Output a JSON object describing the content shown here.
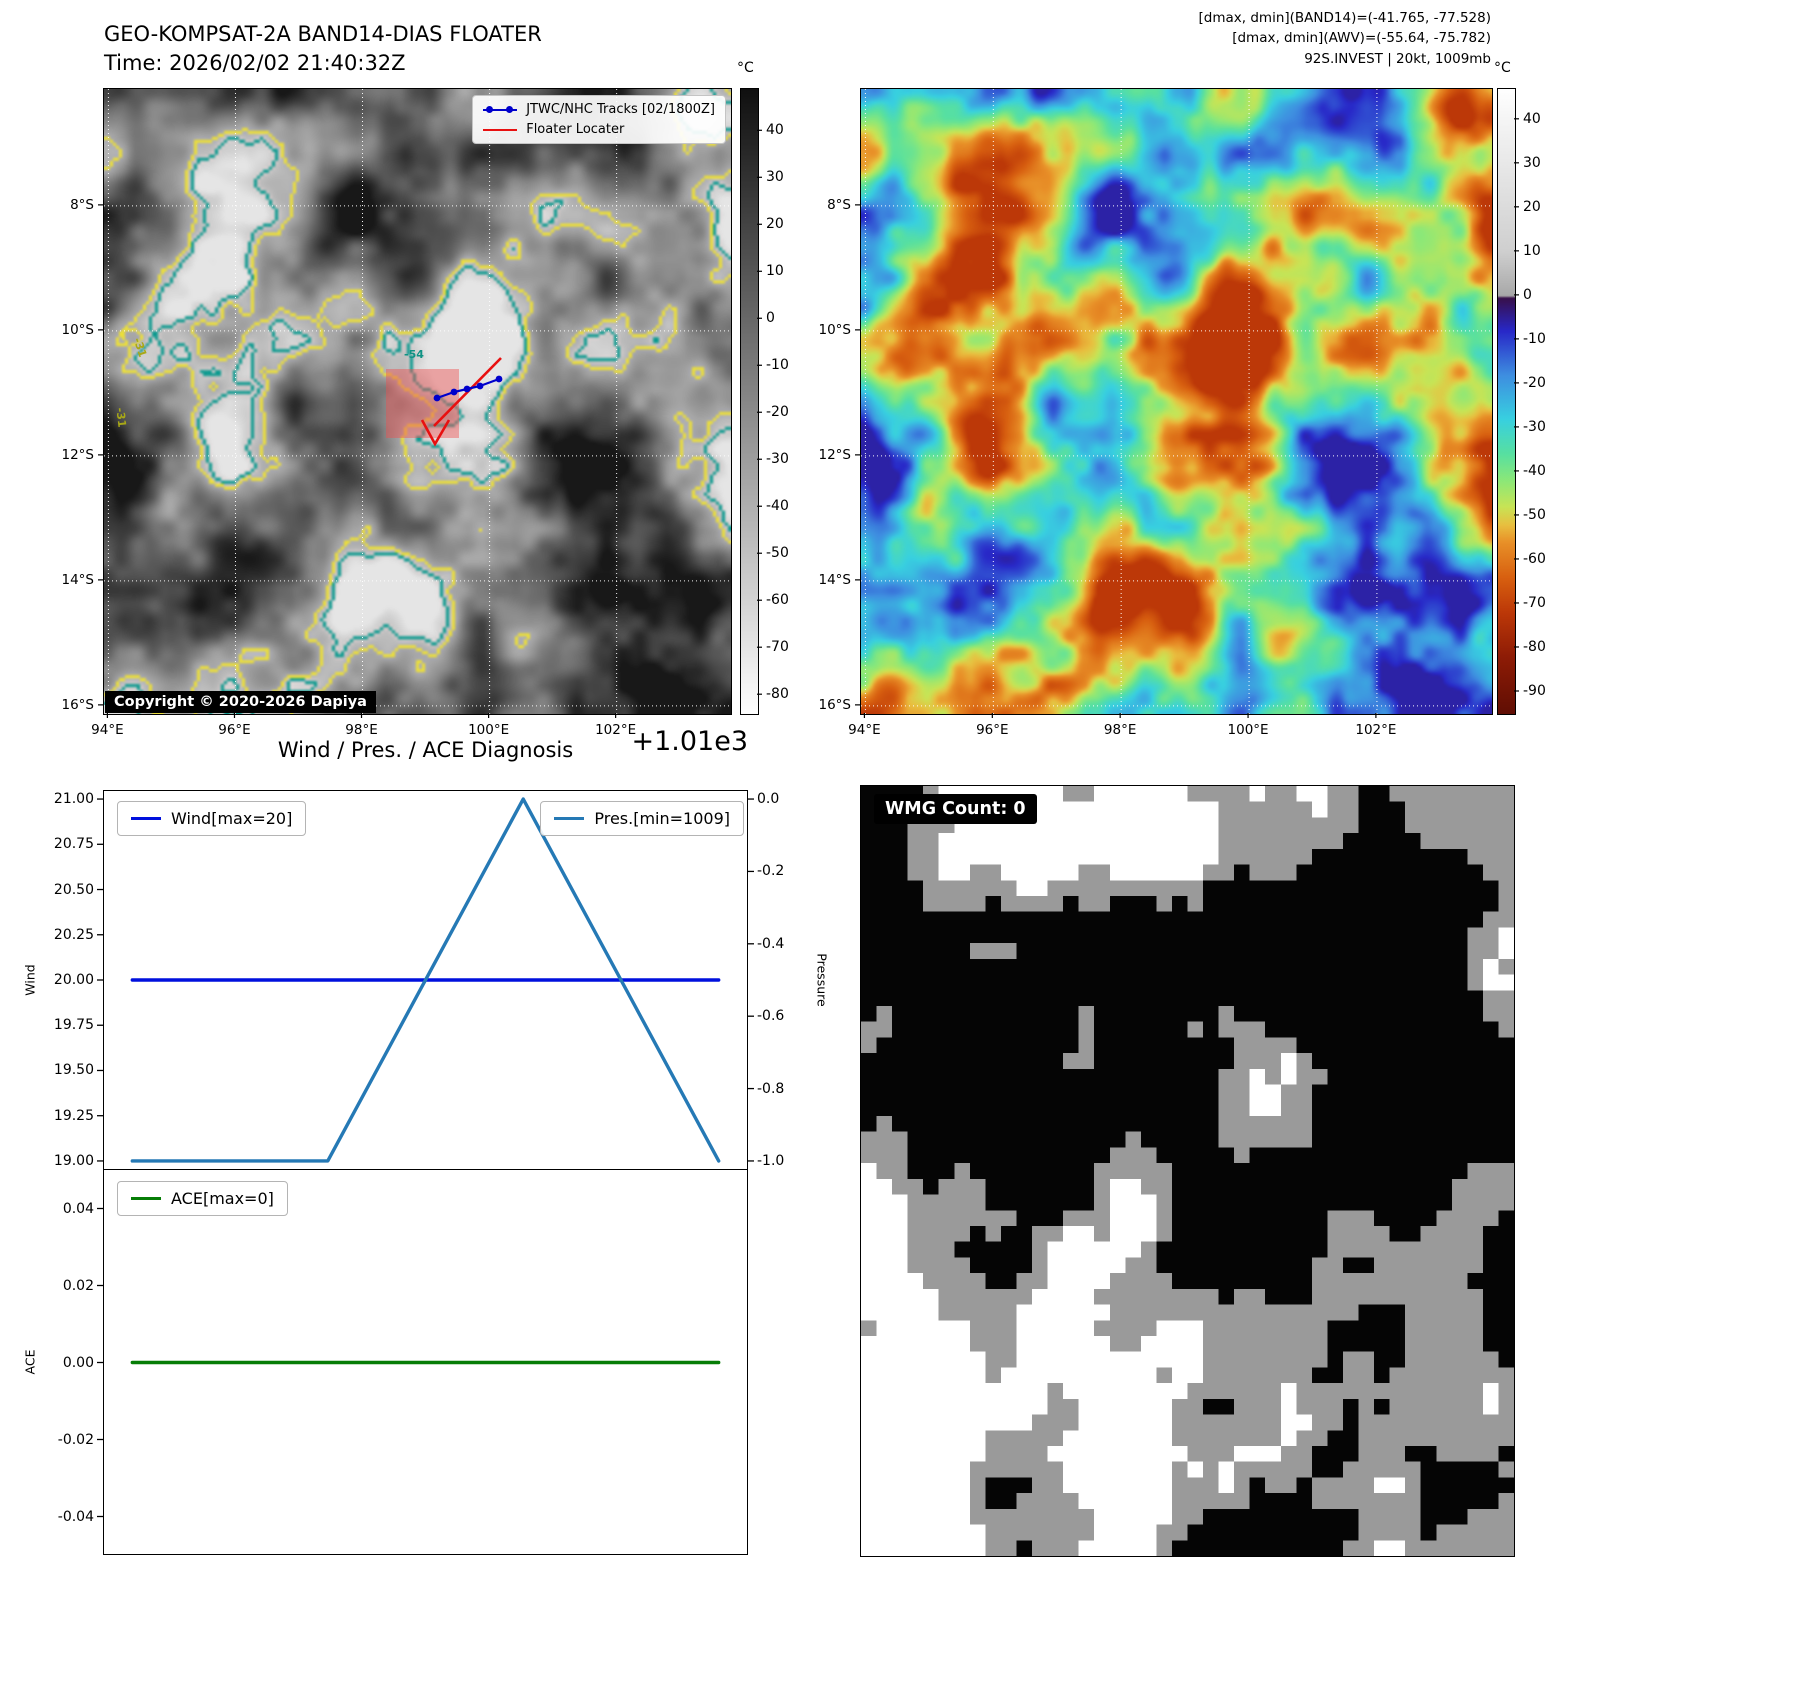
{
  "band14_panel": {
    "title": "GEO-KOMPSAT-2A BAND14-DIAS FLOATER",
    "time_line": "Time: 2026/02/02 21:40:32Z",
    "legend": {
      "tracks_label": "JTWC/NHC Tracks [02/1800Z]",
      "tracks_color": "#0000cc",
      "floater_label": "Floater Locater",
      "floater_color": "#e81010"
    },
    "copyright": "Copyright © 2020-2026 Dapiya",
    "contour_labels": [
      {
        "text": "-31",
        "color": "#a8a816"
      },
      {
        "text": "-54",
        "color": "#109284"
      },
      {
        "text": "-31",
        "color": "#a8a816"
      }
    ],
    "floater_box_color": "#ee5050",
    "colorbar": {
      "unit": "°C",
      "ticks": [
        40,
        30,
        20,
        10,
        0,
        -10,
        -20,
        -30,
        -40,
        -50,
        -60,
        -70,
        -80
      ],
      "stops": [
        {
          "t": 49,
          "c": "#101010"
        },
        {
          "t": -84,
          "c": "#ffffff"
        }
      ]
    },
    "y_ticks": [
      "8°S",
      "10°S",
      "12°S",
      "14°S",
      "16°S"
    ],
    "x_ticks": [
      "94°E",
      "96°E",
      "98°E",
      "100°E",
      "102°E"
    ]
  },
  "awv_panel": {
    "header_lines": [
      "[dmax, dmin](BAND14)=(-41.765, -77.528)",
      "[dmax, dmin](AWV)=(-55.64, -75.782)",
      "92S.INVEST | 20kt, 1009mb"
    ],
    "colorbar": {
      "unit": "°C",
      "ticks": [
        40,
        30,
        20,
        10,
        0,
        -10,
        -20,
        -30,
        -40,
        -50,
        -60,
        -70,
        -80,
        -90
      ],
      "stops": [
        {
          "t": 47,
          "c": "#ffffff"
        },
        {
          "t": 40,
          "c": "#f5f5f5"
        },
        {
          "t": 10,
          "c": "#cfcfcf"
        },
        {
          "t": 0,
          "c": "#a8a8a8"
        },
        {
          "t": -0.5,
          "c": "#38104a"
        },
        {
          "t": -8,
          "c": "#2828c8"
        },
        {
          "t": -18,
          "c": "#3e8ee0"
        },
        {
          "t": -28,
          "c": "#38d0e0"
        },
        {
          "t": -36,
          "c": "#58e0a0"
        },
        {
          "t": -42,
          "c": "#8ce878"
        },
        {
          "t": -48,
          "c": "#c8e455"
        },
        {
          "t": -52,
          "c": "#e8c040"
        },
        {
          "t": -56,
          "c": "#e89028"
        },
        {
          "t": -64,
          "c": "#d86010"
        },
        {
          "t": -72,
          "c": "#bc3808"
        },
        {
          "t": -82,
          "c": "#8e1c06"
        },
        {
          "t": -95,
          "c": "#600e04"
        }
      ]
    },
    "y_ticks": [
      "8°S",
      "10°S",
      "12°S",
      "14°S",
      "16°S"
    ],
    "x_ticks": [
      "94°E",
      "96°E",
      "98°E",
      "100°E",
      "102°E"
    ]
  },
  "diagnosis": {
    "title": "Wind / Pres. / ACE Diagnosis",
    "offset_label": "+1.01e3",
    "wind_legend": "Wind[max=20]",
    "pres_legend": "Pres.[min=1009]",
    "ace_legend": "ACE[max=0]",
    "left_axis_label": "Wind",
    "right_axis_label": "Pressure",
    "ace_axis_label": "ACE"
  },
  "wmg_panel": {
    "count_label": "WMG Count: 0"
  },
  "chart_data": [
    {
      "type": "line",
      "title": "Wind / Pres. / ACE Diagnosis",
      "x": [
        0,
        1,
        2,
        3
      ],
      "series": [
        {
          "name": "Wind[max=20]",
          "axis": "left",
          "color": "#0010dd",
          "values": [
            20,
            20,
            20,
            20
          ]
        },
        {
          "name": "Pres.[min=1009]",
          "axis": "right",
          "color": "#2579b5",
          "values": [
            1009,
            1009,
            1010,
            1009
          ]
        }
      ],
      "ylabel_left": "Wind",
      "ylabel_right": "Pressure",
      "ylim_left": [
        18.95,
        21.05
      ],
      "ylim_right": [
        1008.975,
        1010.025
      ],
      "yticks_left": [
        21.0,
        20.75,
        20.5,
        20.25,
        20.0,
        19.75,
        19.5,
        19.25,
        19.0
      ],
      "yticks_right": [
        0.0,
        -0.2,
        -0.4,
        -0.6,
        -0.8,
        -1.0
      ],
      "yticks_right_offset": "+1.01e3",
      "grid": false,
      "legend_position": "inside-top"
    },
    {
      "type": "line",
      "x": [
        0,
        1,
        2,
        3
      ],
      "series": [
        {
          "name": "ACE[max=0]",
          "axis": "left",
          "color": "#067d06",
          "values": [
            0,
            0,
            0,
            0
          ]
        }
      ],
      "ylabel": "ACE",
      "ylim": [
        -0.05,
        0.05
      ],
      "yticks": [
        0.04,
        0.02,
        0.0,
        -0.02,
        -0.04
      ],
      "grid": false,
      "legend_position": "inside-top-left"
    }
  ]
}
